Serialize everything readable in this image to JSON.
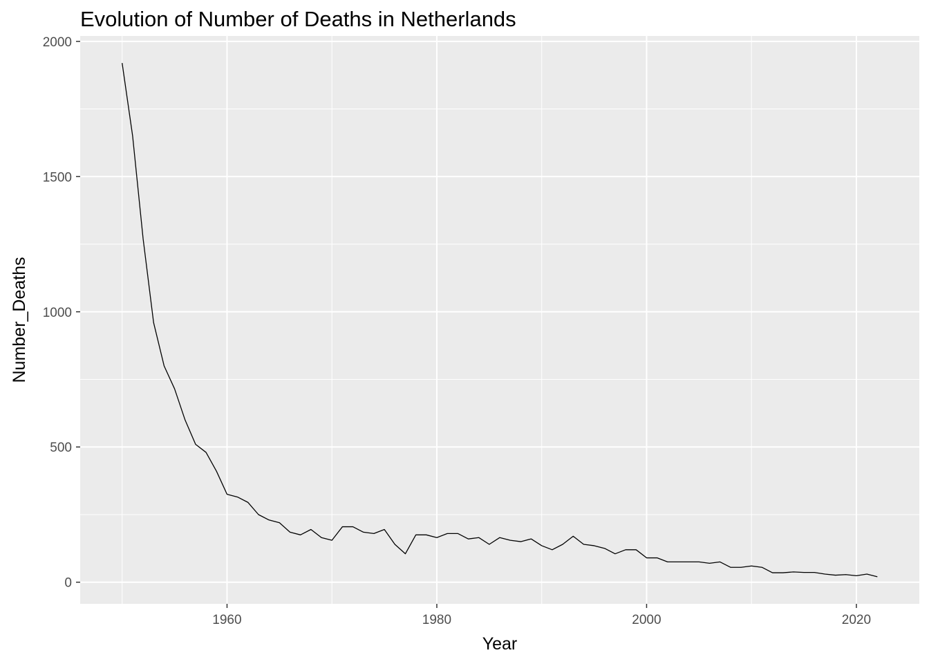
{
  "chart_data": {
    "type": "line",
    "title": "Evolution of Number of Deaths in Netherlands",
    "xlabel": "Year",
    "ylabel": "Number_Deaths",
    "xlim": [
      1946,
      2026
    ],
    "ylim": [
      -80,
      2020
    ],
    "x_ticks": [
      1960,
      1980,
      2000,
      2020
    ],
    "y_ticks": [
      0,
      500,
      1000,
      1500,
      2000
    ],
    "grid": true,
    "legend": "none",
    "colors": {
      "panel": "#ebebeb",
      "grid": "#ffffff",
      "line": "#000000",
      "tick_text": "#4d4d4d"
    },
    "series": [
      {
        "x": [
          1950,
          1951,
          1952,
          1953,
          1954,
          1955,
          1956,
          1957,
          1958,
          1959,
          1960,
          1961,
          1962,
          1963,
          1964,
          1965,
          1966,
          1967,
          1968,
          1969,
          1970,
          1971,
          1972,
          1973,
          1974,
          1975,
          1976,
          1977,
          1978,
          1979,
          1980,
          1981,
          1982,
          1983,
          1984,
          1985,
          1986,
          1987,
          1988,
          1989,
          1990,
          1991,
          1992,
          1993,
          1994,
          1995,
          1996,
          1997,
          1998,
          1999,
          2000,
          2001,
          2002,
          2003,
          2004,
          2005,
          2006,
          2007,
          2008,
          2009,
          2010,
          2011,
          2012,
          2013,
          2014,
          2015,
          2016,
          2017,
          2018,
          2019,
          2020,
          2021,
          2022
        ],
        "values": [
          1920,
          1650,
          1270,
          960,
          800,
          715,
          600,
          510,
          480,
          410,
          325,
          315,
          295,
          250,
          230,
          220,
          185,
          175,
          195,
          165,
          155,
          205,
          205,
          185,
          180,
          195,
          140,
          105,
          175,
          175,
          165,
          180,
          180,
          160,
          165,
          140,
          165,
          155,
          150,
          160,
          135,
          120,
          140,
          170,
          140,
          135,
          125,
          105,
          120,
          120,
          90,
          90,
          75,
          75,
          75,
          75,
          70,
          75,
          55,
          55,
          60,
          55,
          35,
          35,
          38,
          36,
          36,
          30,
          26,
          28,
          24,
          30,
          20
        ]
      }
    ]
  }
}
